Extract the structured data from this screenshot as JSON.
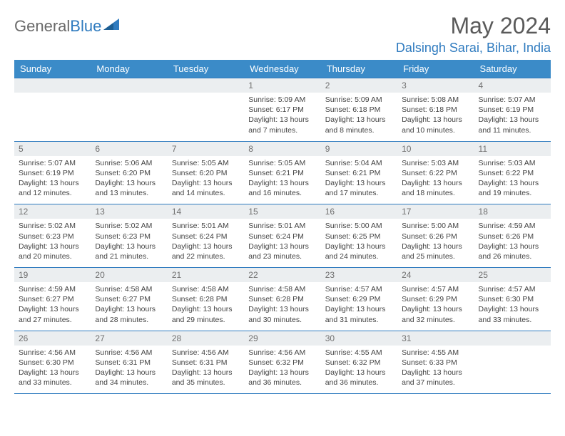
{
  "brand": {
    "part1": "General",
    "part2": "Blue"
  },
  "title": "May 2024",
  "location": "Dalsingh Sarai, Bihar, India",
  "dayNames": [
    "Sunday",
    "Monday",
    "Tuesday",
    "Wednesday",
    "Thursday",
    "Friday",
    "Saturday"
  ],
  "colors": {
    "headerBg": "#3b8bc8",
    "accent": "#2f7bbf",
    "dayNumBg": "#ebeef0",
    "text": "#3a3a3a"
  },
  "weeks": [
    [
      null,
      null,
      null,
      {
        "n": "1",
        "sr": "Sunrise: 5:09 AM",
        "ss": "Sunset: 6:17 PM",
        "dl": "Daylight: 13 hours and 7 minutes."
      },
      {
        "n": "2",
        "sr": "Sunrise: 5:09 AM",
        "ss": "Sunset: 6:18 PM",
        "dl": "Daylight: 13 hours and 8 minutes."
      },
      {
        "n": "3",
        "sr": "Sunrise: 5:08 AM",
        "ss": "Sunset: 6:18 PM",
        "dl": "Daylight: 13 hours and 10 minutes."
      },
      {
        "n": "4",
        "sr": "Sunrise: 5:07 AM",
        "ss": "Sunset: 6:19 PM",
        "dl": "Daylight: 13 hours and 11 minutes."
      }
    ],
    [
      {
        "n": "5",
        "sr": "Sunrise: 5:07 AM",
        "ss": "Sunset: 6:19 PM",
        "dl": "Daylight: 13 hours and 12 minutes."
      },
      {
        "n": "6",
        "sr": "Sunrise: 5:06 AM",
        "ss": "Sunset: 6:20 PM",
        "dl": "Daylight: 13 hours and 13 minutes."
      },
      {
        "n": "7",
        "sr": "Sunrise: 5:05 AM",
        "ss": "Sunset: 6:20 PM",
        "dl": "Daylight: 13 hours and 14 minutes."
      },
      {
        "n": "8",
        "sr": "Sunrise: 5:05 AM",
        "ss": "Sunset: 6:21 PM",
        "dl": "Daylight: 13 hours and 16 minutes."
      },
      {
        "n": "9",
        "sr": "Sunrise: 5:04 AM",
        "ss": "Sunset: 6:21 PM",
        "dl": "Daylight: 13 hours and 17 minutes."
      },
      {
        "n": "10",
        "sr": "Sunrise: 5:03 AM",
        "ss": "Sunset: 6:22 PM",
        "dl": "Daylight: 13 hours and 18 minutes."
      },
      {
        "n": "11",
        "sr": "Sunrise: 5:03 AM",
        "ss": "Sunset: 6:22 PM",
        "dl": "Daylight: 13 hours and 19 minutes."
      }
    ],
    [
      {
        "n": "12",
        "sr": "Sunrise: 5:02 AM",
        "ss": "Sunset: 6:23 PM",
        "dl": "Daylight: 13 hours and 20 minutes."
      },
      {
        "n": "13",
        "sr": "Sunrise: 5:02 AM",
        "ss": "Sunset: 6:23 PM",
        "dl": "Daylight: 13 hours and 21 minutes."
      },
      {
        "n": "14",
        "sr": "Sunrise: 5:01 AM",
        "ss": "Sunset: 6:24 PM",
        "dl": "Daylight: 13 hours and 22 minutes."
      },
      {
        "n": "15",
        "sr": "Sunrise: 5:01 AM",
        "ss": "Sunset: 6:24 PM",
        "dl": "Daylight: 13 hours and 23 minutes."
      },
      {
        "n": "16",
        "sr": "Sunrise: 5:00 AM",
        "ss": "Sunset: 6:25 PM",
        "dl": "Daylight: 13 hours and 24 minutes."
      },
      {
        "n": "17",
        "sr": "Sunrise: 5:00 AM",
        "ss": "Sunset: 6:26 PM",
        "dl": "Daylight: 13 hours and 25 minutes."
      },
      {
        "n": "18",
        "sr": "Sunrise: 4:59 AM",
        "ss": "Sunset: 6:26 PM",
        "dl": "Daylight: 13 hours and 26 minutes."
      }
    ],
    [
      {
        "n": "19",
        "sr": "Sunrise: 4:59 AM",
        "ss": "Sunset: 6:27 PM",
        "dl": "Daylight: 13 hours and 27 minutes."
      },
      {
        "n": "20",
        "sr": "Sunrise: 4:58 AM",
        "ss": "Sunset: 6:27 PM",
        "dl": "Daylight: 13 hours and 28 minutes."
      },
      {
        "n": "21",
        "sr": "Sunrise: 4:58 AM",
        "ss": "Sunset: 6:28 PM",
        "dl": "Daylight: 13 hours and 29 minutes."
      },
      {
        "n": "22",
        "sr": "Sunrise: 4:58 AM",
        "ss": "Sunset: 6:28 PM",
        "dl": "Daylight: 13 hours and 30 minutes."
      },
      {
        "n": "23",
        "sr": "Sunrise: 4:57 AM",
        "ss": "Sunset: 6:29 PM",
        "dl": "Daylight: 13 hours and 31 minutes."
      },
      {
        "n": "24",
        "sr": "Sunrise: 4:57 AM",
        "ss": "Sunset: 6:29 PM",
        "dl": "Daylight: 13 hours and 32 minutes."
      },
      {
        "n": "25",
        "sr": "Sunrise: 4:57 AM",
        "ss": "Sunset: 6:30 PM",
        "dl": "Daylight: 13 hours and 33 minutes."
      }
    ],
    [
      {
        "n": "26",
        "sr": "Sunrise: 4:56 AM",
        "ss": "Sunset: 6:30 PM",
        "dl": "Daylight: 13 hours and 33 minutes."
      },
      {
        "n": "27",
        "sr": "Sunrise: 4:56 AM",
        "ss": "Sunset: 6:31 PM",
        "dl": "Daylight: 13 hours and 34 minutes."
      },
      {
        "n": "28",
        "sr": "Sunrise: 4:56 AM",
        "ss": "Sunset: 6:31 PM",
        "dl": "Daylight: 13 hours and 35 minutes."
      },
      {
        "n": "29",
        "sr": "Sunrise: 4:56 AM",
        "ss": "Sunset: 6:32 PM",
        "dl": "Daylight: 13 hours and 36 minutes."
      },
      {
        "n": "30",
        "sr": "Sunrise: 4:55 AM",
        "ss": "Sunset: 6:32 PM",
        "dl": "Daylight: 13 hours and 36 minutes."
      },
      {
        "n": "31",
        "sr": "Sunrise: 4:55 AM",
        "ss": "Sunset: 6:33 PM",
        "dl": "Daylight: 13 hours and 37 minutes."
      },
      null
    ]
  ]
}
